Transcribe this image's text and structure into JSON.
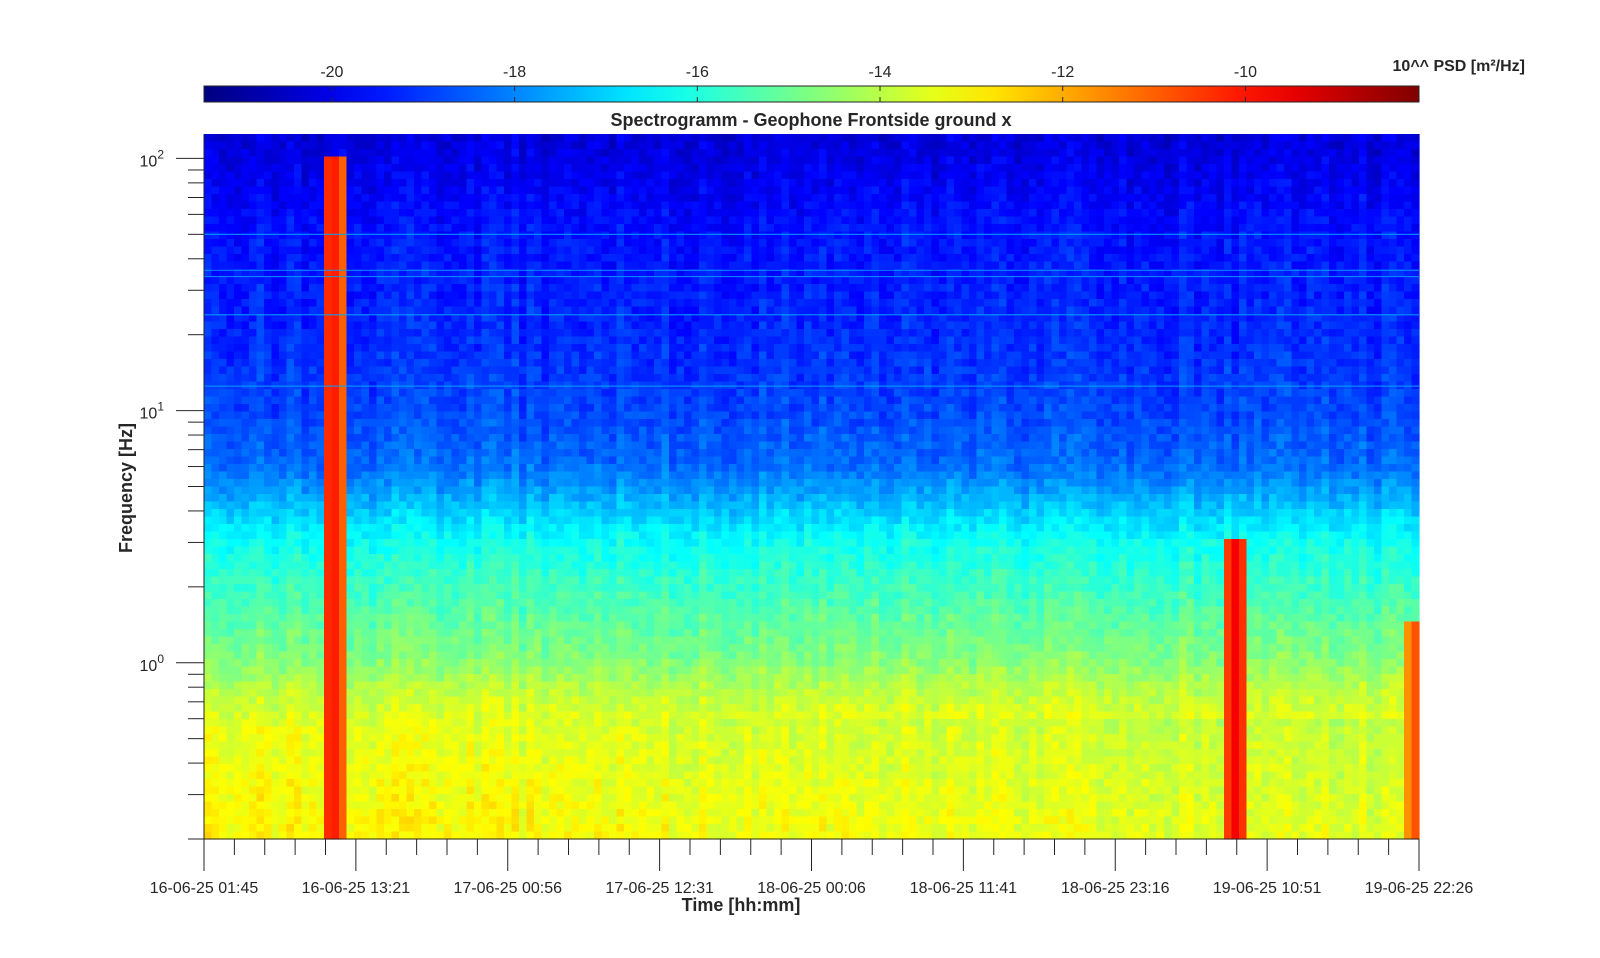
{
  "chart_data": {
    "type": "heatmap",
    "title": "Spectrogramm - Geophone Frontside ground x",
    "xlabel": "Time [hh:mm]",
    "ylabel": "Frequency [Hz]",
    "y_scale": "log",
    "ylim": [
      0.2,
      125
    ],
    "y_ticks": [
      {
        "value": 1,
        "exponent": "0"
      },
      {
        "value": 10,
        "exponent": "1"
      },
      {
        "value": 100,
        "exponent": "2"
      }
    ],
    "x_ticks": [
      "16-06-25 01:45",
      "16-06-25 13:21",
      "17-06-25 00:56",
      "17-06-25 12:31",
      "18-06-25 00:06",
      "18-06-25 11:41",
      "18-06-25 23:16",
      "19-06-25 10:51",
      "19-06-25 22:26"
    ],
    "x_range_hours": [
      0,
      92.8
    ],
    "colorbar": {
      "label": "10^^ PSD [m²/Hz]",
      "range": [
        -21.4,
        -8.1
      ],
      "ticks": [
        -20,
        -18,
        -16,
        -14,
        -12,
        -10
      ],
      "colormap": "jet"
    },
    "features": [
      {
        "label": "background level high frequency",
        "freq_range_hz": [
          10,
          125
        ],
        "value_log10_psd": -19.5
      },
      {
        "label": "background level mid frequency",
        "freq_range_hz": [
          4,
          10
        ],
        "value_log10_psd": -18.3
      },
      {
        "label": "background level low frequency",
        "freq_range_hz": [
          0.2,
          0.55
        ],
        "value_log10_psd": -13.3
      },
      {
        "label": "event",
        "time_hour": 9.8,
        "freq_range_hz": [
          0.2,
          100
        ],
        "value_log10_psd": -9.8
      },
      {
        "label": "event",
        "time_hour": 78.8,
        "freq_range_hz": [
          0.2,
          3
        ],
        "value_log10_psd": -9.6
      },
      {
        "label": "event",
        "time_hour": 92.5,
        "freq_range_hz": [
          0.2,
          1.5
        ],
        "value_log10_psd": -10.8
      }
    ]
  }
}
